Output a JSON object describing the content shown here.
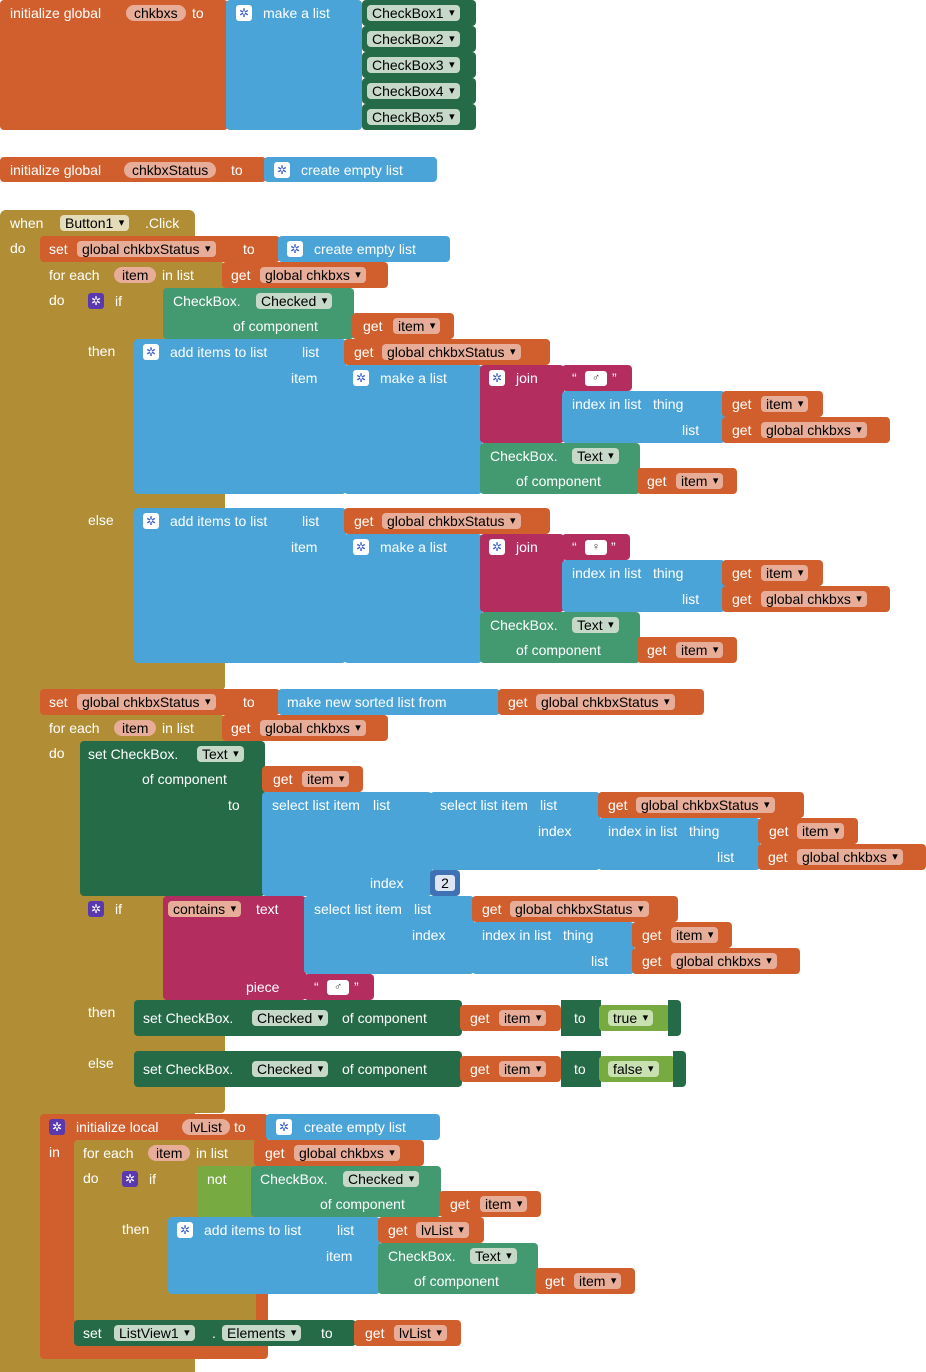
{
  "kw": {
    "initialize_global": "initialize global",
    "to": "to",
    "make_a_list": "make a list",
    "create_empty_list": "create empty list",
    "when": "when",
    "click": ".Click",
    "do": "do",
    "set": "set",
    "for_each": "for each",
    "in_list": "in list",
    "get": "get",
    "if": "if",
    "then": "then",
    "else": "else",
    "checkbox_dot": "CheckBox.",
    "of_component": "of component",
    "add_items_to_list": "add items to list",
    "list": "list",
    "item": "item",
    "join": "join",
    "index_in_list": "index in list",
    "thing": "thing",
    "make_new_sorted_list_from": "make new sorted list from",
    "set_checkbox_dot": "set CheckBox.",
    "select_list_item": "select list item",
    "index": "index",
    "text": "text",
    "piece": "piece",
    "initialize_local": "initialize local",
    "in": "in",
    "not": "not",
    "dot": ".",
    "quote_open": "“",
    "quote_close": "”"
  },
  "values": {
    "chkbxs": "chkbxs",
    "chkbxstatus": "chkbxStatus",
    "checkboxes": [
      "CheckBox1",
      "CheckBox2",
      "CheckBox3",
      "CheckBox4",
      "CheckBox5"
    ],
    "button1": "Button1",
    "global_chkbxstatus": "global chkbxStatus",
    "global_chkbxs": "global chkbxs",
    "item": "item",
    "checked": "Checked",
    "text_prop": "Text",
    "male_symbol": "♂",
    "female_symbol": "♀",
    "index_value": "2",
    "contains": "contains",
    "true": "true",
    "false": "false",
    "lvlist": "lvList",
    "listview1": "ListView1",
    "elements": "Elements"
  },
  "colors": {
    "variables": "#d05f2d",
    "lists": "#4ba4d8",
    "control": "#b18e35",
    "components": "#266b47",
    "components_getter": "#439970",
    "text": "#b32d5e",
    "logic": "#77ab41",
    "math": "#3f71b5"
  }
}
